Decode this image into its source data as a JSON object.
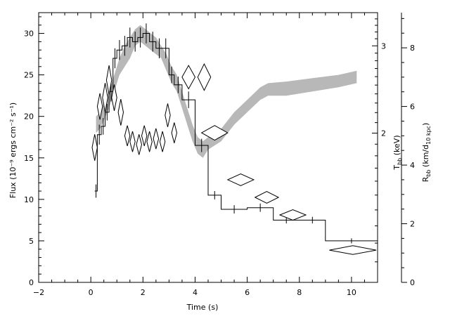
{
  "chart_data": {
    "type": "line",
    "xlabel": "Time (s)",
    "ylabel_left": "Flux (10⁻⁹ ergs cm⁻² s⁻¹)",
    "ylabel_right_temperature": "T",
    "ylabel_right_temperature_sub": "bb",
    "ylabel_right_temperature_unit": " (keV)",
    "ylabel_right_radius": "R",
    "ylabel_right_radius_sub": "bb",
    "ylabel_right_radius_unit_a": " (km/d",
    "ylabel_right_radius_unit_sub": "10 kpc",
    "ylabel_right_radius_unit_b": ")",
    "xlim": [
      -2,
      11
    ],
    "ylim_flux": [
      0,
      32.5
    ],
    "xticks": [
      "−2",
      "0",
      "2",
      "4",
      "6",
      "8",
      "10"
    ],
    "xtick_values": [
      -2,
      0,
      2,
      4,
      6,
      8,
      10
    ],
    "flux_ticks": [
      "0",
      "5",
      "10",
      "15",
      "20",
      "25",
      "30"
    ],
    "flux_tick_values": [
      0,
      5,
      10,
      15,
      20,
      25,
      30
    ],
    "temperature_scale": "log",
    "temperature_lim": [
      1,
      3.5
    ],
    "temperature_ticks": [
      "2",
      "3"
    ],
    "temperature_tick_values": [
      2,
      3
    ],
    "radius_lim": [
      0,
      9.2
    ],
    "radius_ticks": [
      "0",
      "2",
      "4",
      "6",
      "8"
    ],
    "radius_tick_values": [
      0,
      2,
      4,
      6,
      8
    ],
    "series": [
      {
        "kind": "histogram",
        "edges": [
          0.15,
          0.25,
          0.4,
          0.55,
          0.7,
          0.85,
          1.0,
          1.2,
          1.4,
          1.6,
          1.8,
          2.0,
          2.25,
          2.5,
          2.75,
          3.0,
          3.2,
          3.5,
          4.0,
          4.5,
          5.0,
          6.0,
          7.0,
          8.0,
          9.0,
          11.0
        ],
        "values": [
          11.0,
          17.8,
          18.8,
          20.5,
          23.0,
          27.0,
          28.0,
          28.5,
          29.5,
          29.0,
          29.5,
          30.0,
          29.0,
          28.2,
          28.2,
          25.0,
          23.8,
          22.0,
          16.5,
          10.5,
          8.8,
          9.0,
          7.5,
          7.5,
          5.0
        ],
        "errors": [
          0.8,
          1.2,
          1.0,
          1.0,
          1.2,
          1.2,
          1.2,
          1.2,
          1.2,
          1.2,
          1.2,
          1.2,
          1.2,
          1.2,
          1.2,
          1.0,
          1.0,
          1.0,
          0.8,
          0.5,
          0.5,
          0.5,
          0.4,
          0.4,
          0.3
        ]
      },
      {
        "kind": "band",
        "x": [
          0.2,
          0.35,
          0.5,
          0.7,
          0.9,
          1.1,
          1.3,
          1.5,
          1.7,
          1.9,
          2.1,
          2.3,
          2.5,
          2.7,
          2.9,
          3.1,
          3.3,
          3.5,
          3.7,
          3.9,
          4.1,
          4.3,
          4.5,
          5.0,
          5.5,
          6.0,
          6.5,
          6.8,
          7.5,
          8.5,
          9.5,
          10.2
        ],
        "low": [
          18.0,
          18.5,
          19.5,
          21.0,
          23.0,
          25.0,
          26.0,
          27.0,
          28.5,
          29.0,
          28.5,
          28.0,
          27.5,
          27.0,
          25.5,
          24.0,
          23.0,
          21.0,
          19.0,
          17.0,
          15.5,
          15.0,
          16.0,
          17.0,
          19.0,
          20.5,
          22.0,
          22.5,
          22.5,
          23.0,
          23.5,
          24.0
        ],
        "high": [
          20.0,
          20.5,
          21.5,
          23.0,
          25.0,
          27.0,
          28.5,
          29.5,
          30.5,
          31.0,
          30.5,
          30.0,
          29.5,
          28.5,
          27.5,
          26.0,
          25.0,
          23.0,
          21.0,
          19.0,
          17.5,
          17.0,
          17.5,
          18.5,
          20.5,
          22.0,
          23.5,
          24.0,
          24.2,
          24.6,
          25.0,
          25.5
        ]
      },
      {
        "kind": "diamonds",
        "points": [
          {
            "x": 0.15,
            "radius": 4.6,
            "dx": 0.1,
            "dradius": 0.45
          },
          {
            "x": 0.35,
            "radius": 6.0,
            "dx": 0.1,
            "dradius": 0.45
          },
          {
            "x": 0.55,
            "radius": 6.3,
            "dx": 0.1,
            "dradius": 0.5
          },
          {
            "x": 0.7,
            "radius": 6.9,
            "dx": 0.1,
            "dradius": 0.5
          },
          {
            "x": 0.9,
            "radius": 6.3,
            "dx": 0.1,
            "dradius": 0.45
          },
          {
            "x": 1.15,
            "radius": 5.8,
            "dx": 0.1,
            "dradius": 0.45
          },
          {
            "x": 1.4,
            "radius": 5.0,
            "dx": 0.1,
            "dradius": 0.35
          },
          {
            "x": 1.6,
            "radius": 4.8,
            "dx": 0.1,
            "dradius": 0.35
          },
          {
            "x": 1.85,
            "radius": 4.7,
            "dx": 0.1,
            "dradius": 0.35
          },
          {
            "x": 2.05,
            "radius": 5.0,
            "dx": 0.1,
            "dradius": 0.35
          },
          {
            "x": 2.25,
            "radius": 4.8,
            "dx": 0.1,
            "dradius": 0.35
          },
          {
            "x": 2.5,
            "radius": 4.9,
            "dx": 0.1,
            "dradius": 0.35
          },
          {
            "x": 2.75,
            "radius": 4.8,
            "dx": 0.1,
            "dradius": 0.35
          },
          {
            "x": 2.95,
            "radius": 5.7,
            "dx": 0.1,
            "dradius": 0.4
          },
          {
            "x": 3.2,
            "radius": 5.1,
            "dx": 0.1,
            "dradius": 0.35
          },
          {
            "x": 3.75,
            "radius": 7.0,
            "dx": 0.25,
            "dradius": 0.4
          },
          {
            "x": 4.35,
            "radius": 7.0,
            "dx": 0.25,
            "dradius": 0.45
          },
          {
            "x": 4.75,
            "radius": 5.1,
            "dx": 0.5,
            "dradius": 0.25
          },
          {
            "x": 5.75,
            "radius": 3.5,
            "dx": 0.5,
            "dradius": 0.2
          },
          {
            "x": 6.75,
            "radius": 2.9,
            "dx": 0.45,
            "dradius": 0.2
          },
          {
            "x": 7.75,
            "radius": 2.3,
            "dx": 0.5,
            "dradius": 0.18
          },
          {
            "x": 10.05,
            "radius": 1.1,
            "dx": 0.9,
            "dradius": 0.15
          }
        ]
      }
    ]
  }
}
